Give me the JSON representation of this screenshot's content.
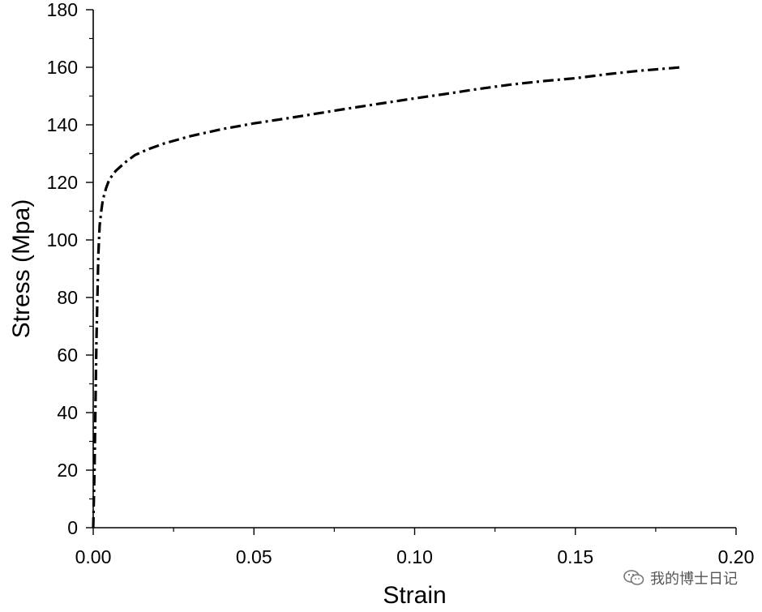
{
  "chart_data": {
    "type": "line",
    "title": "",
    "xlabel": "Strain",
    "ylabel": "Stress (Mpa)",
    "xlim": [
      0,
      0.2
    ],
    "ylim": [
      0,
      180
    ],
    "x_ticks": [
      "0.00",
      "0.05",
      "0.10",
      "0.15",
      "0.20"
    ],
    "y_ticks": [
      "0",
      "20",
      "40",
      "60",
      "80",
      "100",
      "120",
      "140",
      "160",
      "180"
    ],
    "grid": false,
    "legend": "none",
    "series": [
      {
        "line_style": "dash-dot",
        "color": "#000000",
        "x": [
          0,
          0.0002,
          0.0004,
          0.0006,
          0.0008,
          0.001,
          0.0013,
          0.0016,
          0.002,
          0.0025,
          0.003,
          0.004,
          0.005,
          0.007,
          0.01,
          0.013,
          0.017,
          0.022,
          0.03,
          0.04,
          0.05,
          0.06,
          0.07,
          0.08,
          0.09,
          0.1,
          0.11,
          0.12,
          0.13,
          0.14,
          0.15,
          0.16,
          0.17,
          0.183
        ],
        "y": [
          0,
          10,
          20,
          35,
          50,
          65,
          80,
          95,
          105,
          110,
          114,
          118,
          121,
          124,
          127,
          129.5,
          131.5,
          133.5,
          136,
          138.5,
          140.5,
          142.2,
          144,
          145.8,
          147.5,
          149.2,
          150.8,
          152.5,
          154,
          155.2,
          156.2,
          157.6,
          158.8,
          160
        ]
      }
    ]
  },
  "watermark": {
    "text": "我的博士日记",
    "icon": "wechat-icon"
  }
}
